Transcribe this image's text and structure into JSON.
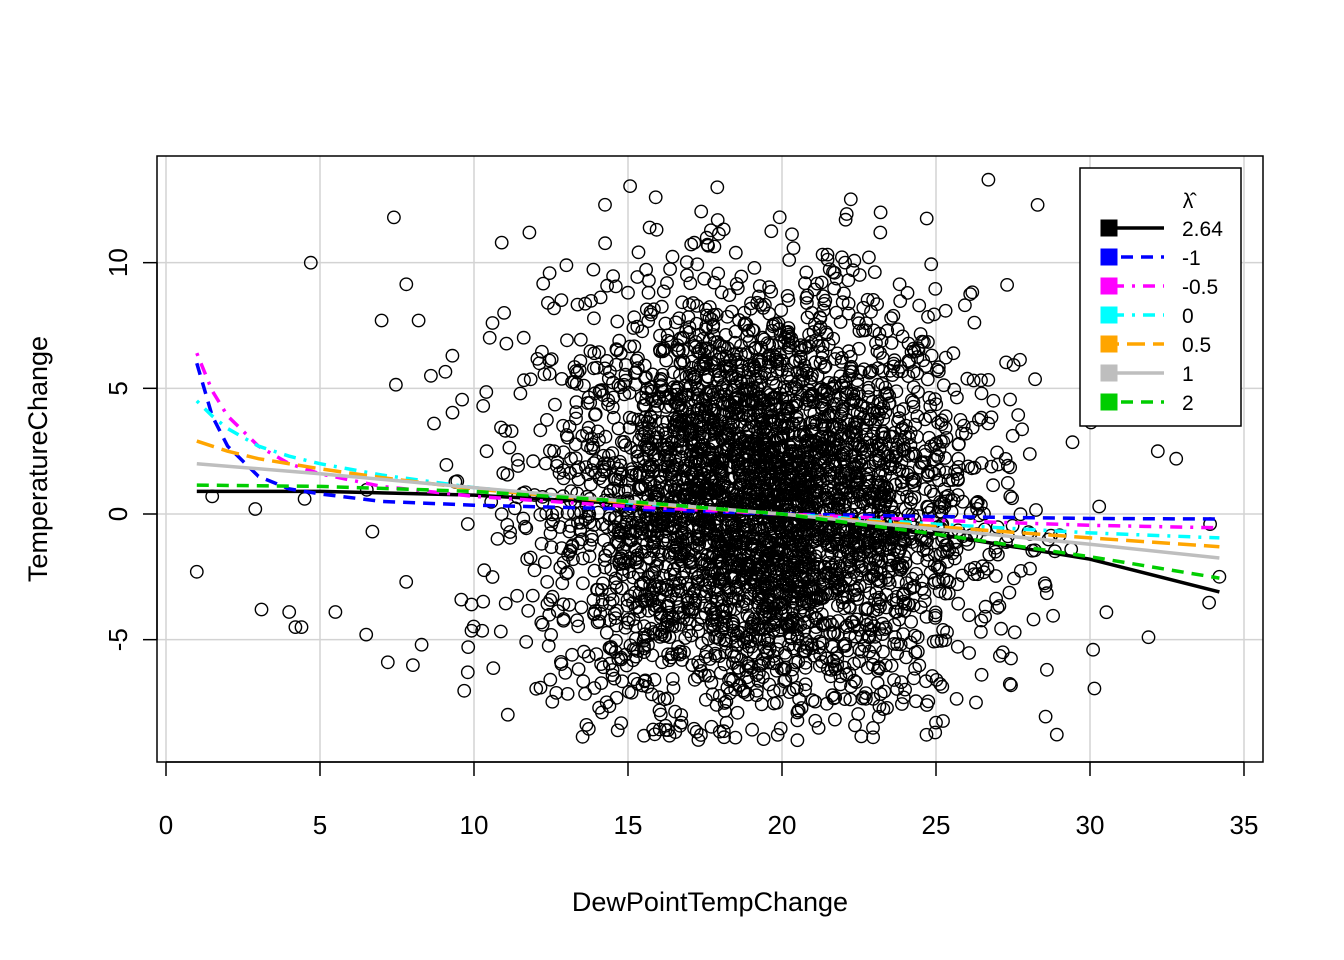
{
  "chart_data": {
    "type": "scatter",
    "title": "",
    "xlabel": "DewPointTempChange",
    "ylabel": "TemperatureChange",
    "xlim": [
      0,
      35
    ],
    "ylim": [
      -9,
      14
    ],
    "x_ticks": [
      0,
      5,
      10,
      15,
      20,
      25,
      30,
      35
    ],
    "y_ticks": [
      -5,
      0,
      5,
      10
    ],
    "grid": true,
    "legend": {
      "position": "top-right",
      "title": "λ̂",
      "entries": [
        {
          "label": "2.64",
          "color": "#000000",
          "dash": "solid"
        },
        {
          "label": "-1",
          "color": "#0000ff",
          "dash": "dashed"
        },
        {
          "label": "-0.5",
          "color": "#ff00ff",
          "dash": "dotdash"
        },
        {
          "label": "0",
          "color": "#00ffff",
          "dash": "dotdash"
        },
        {
          "label": "0.5",
          "color": "#ffa500",
          "dash": "longdash"
        },
        {
          "label": "1",
          "color": "#bebebe",
          "dash": "solid"
        },
        {
          "label": "2",
          "color": "#00cd00",
          "dash": "dashed"
        }
      ]
    },
    "scatter_cloud": {
      "description_free": true,
      "n_points": 4200,
      "x_mean": 19.3,
      "x_sd": 3.4,
      "y_mean": 0.3,
      "y_sd": 4.2,
      "y_min": -9,
      "y_max": 13.3
    },
    "sample_points": [
      [
        1.0,
        -2.3
      ],
      [
        1.5,
        0.7
      ],
      [
        2.9,
        0.2
      ],
      [
        3.1,
        -3.8
      ],
      [
        4.2,
        -4.5
      ],
      [
        4.4,
        -4.5
      ],
      [
        4.0,
        -3.9
      ],
      [
        4.5,
        0.6
      ],
      [
        4.7,
        10.0
      ],
      [
        5.5,
        -3.9
      ],
      [
        6.5,
        -4.8
      ],
      [
        6.7,
        -0.7
      ],
      [
        7.0,
        7.7
      ],
      [
        7.2,
        -5.9
      ],
      [
        7.4,
        11.8
      ],
      [
        7.8,
        -2.7
      ],
      [
        8.2,
        7.7
      ],
      [
        8.3,
        -5.2
      ],
      [
        8.6,
        5.5
      ],
      [
        8.7,
        3.6
      ],
      [
        9.3,
        6.3
      ],
      [
        9.8,
        -6.3
      ],
      [
        10.3,
        4.3
      ],
      [
        10.6,
        7.6
      ],
      [
        10.9,
        10.8
      ],
      [
        11.8,
        11.2
      ],
      [
        12.4,
        8.4
      ],
      [
        13.0,
        9.9
      ],
      [
        15.9,
        12.6
      ],
      [
        17.9,
        13.0
      ],
      [
        23.2,
        12.0
      ],
      [
        26.7,
        13.3
      ],
      [
        28.3,
        12.3
      ],
      [
        30.3,
        0.3
      ],
      [
        31.9,
        -4.9
      ],
      [
        32.2,
        2.5
      ],
      [
        32.8,
        2.2
      ],
      [
        33.9,
        -0.4
      ],
      [
        34.2,
        -2.5
      ],
      [
        30.1,
        -5.4
      ],
      [
        28.6,
        -6.2
      ],
      [
        25.0,
        -8.3
      ],
      [
        20.5,
        -9.0
      ],
      [
        16.3,
        -8.6
      ],
      [
        24.7,
        -7.6
      ],
      [
        26.3,
        -7.5
      ],
      [
        22.3,
        9.7
      ],
      [
        15.7,
        11.4
      ]
    ],
    "series": [
      {
        "name": "2.64",
        "x": [
          1,
          5,
          10,
          15,
          20,
          25,
          30,
          34.2
        ],
        "y": [
          0.9,
          0.9,
          0.75,
          0.4,
          -0.1,
          -0.8,
          -1.8,
          -3.1
        ]
      },
      {
        "name": "-1",
        "x": [
          1,
          1.5,
          2,
          3,
          4,
          5,
          7,
          10,
          15,
          20,
          25,
          30,
          34.2
        ],
        "y": [
          6.0,
          3.9,
          2.7,
          1.5,
          1.0,
          0.8,
          0.5,
          0.35,
          0.2,
          0.0,
          -0.1,
          -0.18,
          -0.2
        ]
      },
      {
        "name": "-0.5",
        "x": [
          1,
          1.5,
          2,
          3,
          4,
          5,
          7,
          10,
          15,
          20,
          25,
          30,
          34.2
        ],
        "y": [
          6.4,
          4.9,
          3.9,
          2.7,
          2.0,
          1.6,
          1.1,
          0.7,
          0.3,
          0.0,
          -0.25,
          -0.45,
          -0.55
        ]
      },
      {
        "name": "0",
        "x": [
          1,
          1.5,
          2,
          3,
          4,
          5,
          7,
          10,
          15,
          20,
          25,
          30,
          34.2
        ],
        "y": [
          4.5,
          3.9,
          3.4,
          2.7,
          2.3,
          2.0,
          1.55,
          1.05,
          0.45,
          0.0,
          -0.4,
          -0.75,
          -0.95
        ]
      },
      {
        "name": "0.5",
        "x": [
          1,
          2,
          3,
          5,
          7,
          10,
          15,
          20,
          25,
          30,
          34.2
        ],
        "y": [
          2.9,
          2.5,
          2.2,
          1.8,
          1.45,
          1.0,
          0.45,
          0.0,
          -0.5,
          -0.95,
          -1.3
        ]
      },
      {
        "name": "1",
        "x": [
          1,
          5,
          10,
          15,
          20,
          25,
          30,
          34.2
        ],
        "y": [
          2.0,
          1.6,
          1.05,
          0.5,
          0.0,
          -0.6,
          -1.2,
          -1.75
        ]
      },
      {
        "name": "2",
        "x": [
          1,
          5,
          10,
          15,
          20,
          25,
          30,
          34.2
        ],
        "y": [
          1.15,
          1.1,
          0.9,
          0.5,
          0.0,
          -0.8,
          -1.7,
          -2.55
        ]
      }
    ]
  }
}
